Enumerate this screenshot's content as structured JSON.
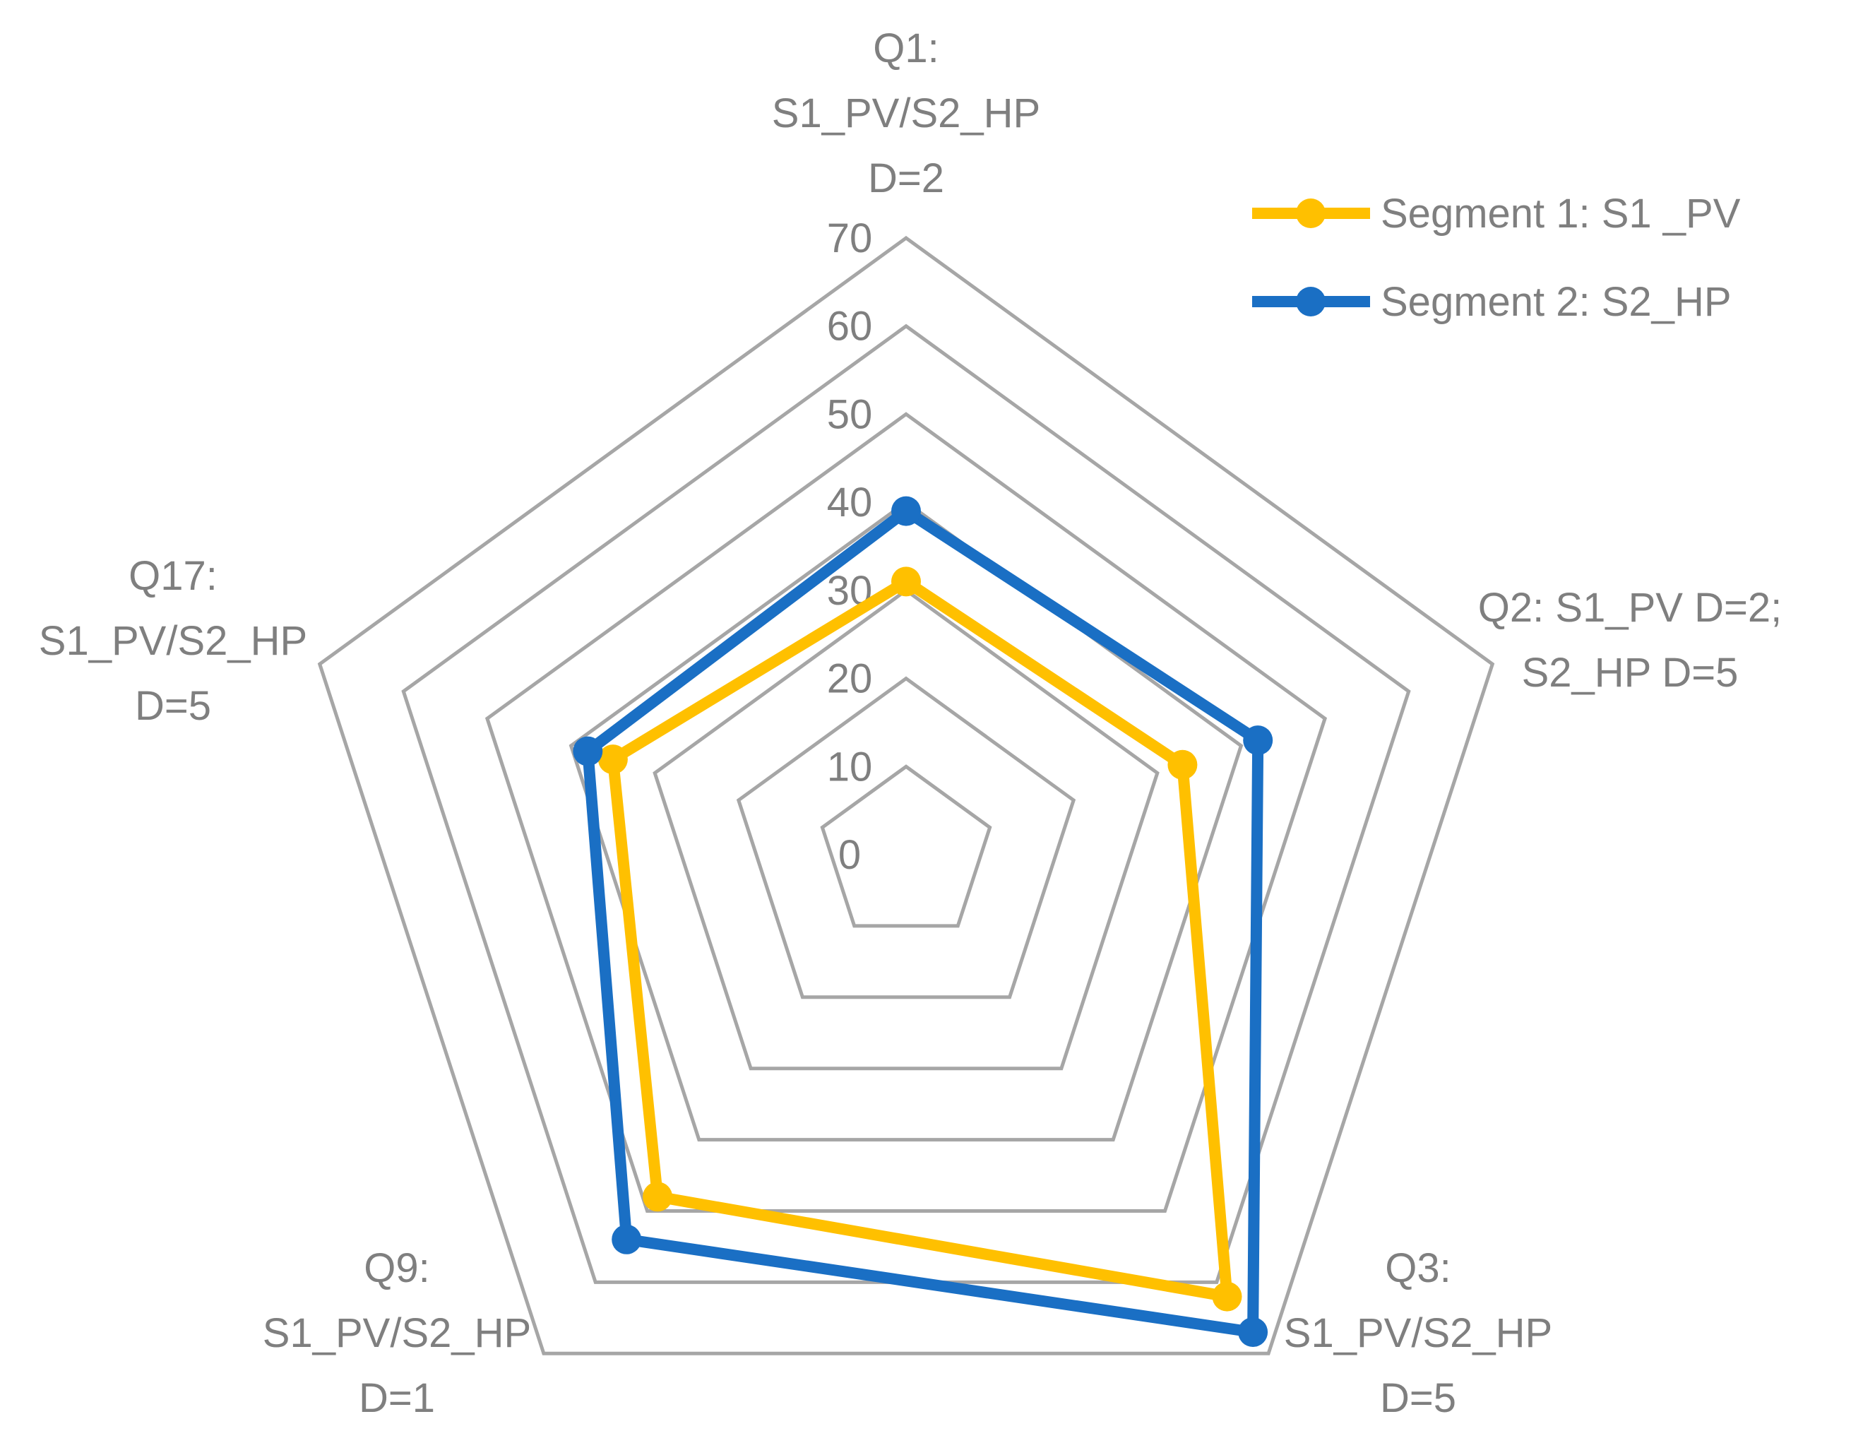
{
  "chart_data": {
    "type": "radar",
    "categories": [
      [
        "Q1:",
        "S1_PV/S2_HP",
        "D=2"
      ],
      [
        "Q2: S1_PV D=2;",
        "S2_HP D=5"
      ],
      [
        "Q3:",
        "S1_PV/S2_HP",
        "D=5"
      ],
      [
        "Q9:",
        "S1_PV/S2_HP",
        "D=1"
      ],
      [
        "Q17:",
        "S1_PV/S2_HP",
        "D=5"
      ]
    ],
    "rlim": [
      0,
      70
    ],
    "ticks": [
      "0",
      "10",
      "20",
      "30",
      "40",
      "50",
      "60",
      "70"
    ],
    "grid": true,
    "legend_position": "top-right",
    "series": [
      {
        "name": "Segment 1: S1 _PV",
        "color": "#ffc000",
        "values": [
          31,
          33,
          62,
          48,
          35
        ]
      },
      {
        "name": "Segment 2: S2_HP",
        "color": "#1a6fc4",
        "values": [
          39,
          42,
          67,
          54,
          38
        ]
      }
    ],
    "colors": {
      "grid": "#a6a6a6",
      "text": "#7f7f7f"
    }
  }
}
